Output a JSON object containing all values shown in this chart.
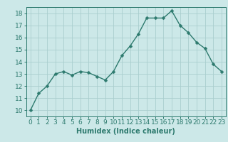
{
  "x": [
    0,
    1,
    2,
    3,
    4,
    5,
    6,
    7,
    8,
    9,
    10,
    11,
    12,
    13,
    14,
    15,
    16,
    17,
    18,
    19,
    20,
    21,
    22,
    23
  ],
  "y": [
    10.0,
    11.4,
    12.0,
    13.0,
    13.2,
    12.9,
    13.2,
    13.1,
    12.8,
    12.5,
    13.2,
    14.5,
    15.3,
    16.3,
    17.6,
    17.6,
    17.6,
    18.2,
    17.0,
    16.4,
    15.6,
    15.1,
    13.8,
    13.2
  ],
  "xlim": [
    -0.5,
    23.5
  ],
  "ylim": [
    9.5,
    18.5
  ],
  "yticks": [
    10,
    11,
    12,
    13,
    14,
    15,
    16,
    17,
    18
  ],
  "xticks": [
    0,
    1,
    2,
    3,
    4,
    5,
    6,
    7,
    8,
    9,
    10,
    11,
    12,
    13,
    14,
    15,
    16,
    17,
    18,
    19,
    20,
    21,
    22,
    23
  ],
  "xlabel": "Humidex (Indice chaleur)",
  "line_color": "#2d7a6e",
  "marker": "D",
  "marker_size": 2.5,
  "line_width": 1.0,
  "bg_color": "#cce8e8",
  "grid_color": "#aacece",
  "tick_color": "#2d7a6e",
  "label_color": "#2d7a6e",
  "xlabel_fontsize": 7,
  "tick_fontsize": 6.5
}
